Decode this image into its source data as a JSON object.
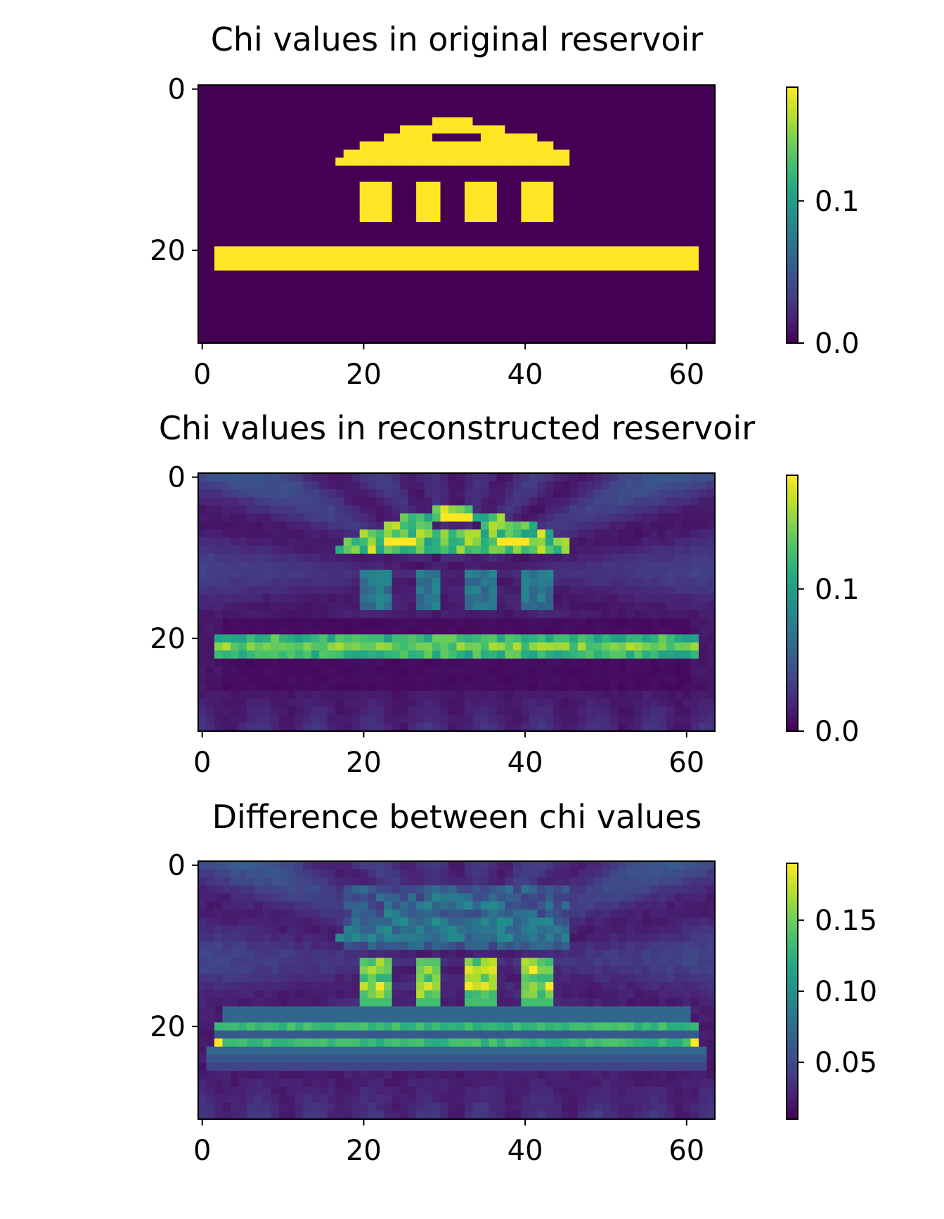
{
  "chart_data": [
    {
      "type": "heatmap",
      "title": "Chi values in original reservoir",
      "xlabel": "",
      "ylabel": "",
      "grid_shape": [
        32,
        64
      ],
      "xlim": [
        -0.5,
        63.5
      ],
      "ylim": [
        31.5,
        -0.5
      ],
      "x_ticks": [
        0,
        20,
        40,
        60
      ],
      "y_ticks": [
        0,
        20
      ],
      "colormap": "viridis",
      "colorbar": {
        "min": 0.0,
        "max": 0.18,
        "ticks": [
          0.0,
          0.1
        ],
        "tick_labels": [
          "0.0",
          "0.1"
        ]
      },
      "grid": false,
      "background_value": 0.0,
      "regions": [
        {
          "shape": "roof-row",
          "row": 4,
          "col_start": 29,
          "col_end": 33,
          "value": 0.18
        },
        {
          "shape": "roof-row",
          "row": 5,
          "col_start": 25,
          "col_end": 37,
          "value": 0.18
        },
        {
          "shape": "roof-row",
          "row": 6,
          "col_start": 23,
          "col_end": 41,
          "value": 0.18
        },
        {
          "shape": "roof-row",
          "row": 7,
          "col_start": 20,
          "col_end": 43,
          "value": 0.18
        },
        {
          "shape": "roof-row",
          "row": 8,
          "col_start": 18,
          "col_end": 45,
          "value": 0.18
        },
        {
          "shape": "roof-row",
          "row": 9,
          "col_start": 17,
          "col_end": 45,
          "value": 0.18
        },
        {
          "shape": "roof-hole",
          "row": 6,
          "col_start": 29,
          "col_end": 34,
          "value": 0.0
        },
        {
          "shape": "pillar",
          "row_start": 12,
          "row_end": 16,
          "col_start": 20,
          "col_end": 23,
          "value": 0.18
        },
        {
          "shape": "pillar",
          "row_start": 12,
          "row_end": 16,
          "col_start": 27,
          "col_end": 29,
          "value": 0.18
        },
        {
          "shape": "pillar",
          "row_start": 12,
          "row_end": 16,
          "col_start": 33,
          "col_end": 36,
          "value": 0.18
        },
        {
          "shape": "pillar",
          "row_start": 12,
          "row_end": 16,
          "col_start": 40,
          "col_end": 43,
          "value": 0.18
        },
        {
          "shape": "floor",
          "row_start": 20,
          "row_end": 22,
          "col_start": 2,
          "col_end": 61,
          "value": 0.18
        }
      ]
    },
    {
      "type": "heatmap",
      "title": "Chi values in reconstructed reservoir",
      "xlabel": "",
      "ylabel": "",
      "grid_shape": [
        32,
        64
      ],
      "xlim": [
        -0.5,
        63.5
      ],
      "ylim": [
        31.5,
        -0.5
      ],
      "x_ticks": [
        0,
        20,
        40,
        60
      ],
      "y_ticks": [
        0,
        20
      ],
      "colormap": "viridis",
      "colorbar": {
        "min": 0.0,
        "max": 0.18,
        "ticks": [
          0.0,
          0.1
        ],
        "tick_labels": [
          "0.0",
          "0.1"
        ]
      },
      "grid": false,
      "approx_values": {
        "background": 0.02,
        "artifact_max": 0.05,
        "roof": 0.13,
        "roof_peak": 0.18,
        "pillars": 0.07,
        "floor": 0.12
      }
    },
    {
      "type": "heatmap",
      "title": "Difference between chi values",
      "xlabel": "",
      "ylabel": "",
      "grid_shape": [
        32,
        64
      ],
      "xlim": [
        -0.5,
        63.5
      ],
      "ylim": [
        31.5,
        -0.5
      ],
      "x_ticks": [
        0,
        20,
        40,
        60
      ],
      "y_ticks": [
        0,
        20
      ],
      "colormap": "viridis",
      "colorbar": {
        "min": 0.01,
        "max": 0.19,
        "ticks": [
          0.05,
          0.1,
          0.15
        ],
        "tick_labels": [
          "0.05",
          "0.10",
          "0.15"
        ]
      },
      "grid": false,
      "approx_values": {
        "background": 0.02,
        "artifact_max": 0.06,
        "roof": 0.08,
        "pillars": 0.15,
        "pillars_peak": 0.18,
        "floor_edges": 0.13,
        "floor_center": 0.06,
        "band_rows": 0.07
      }
    }
  ]
}
